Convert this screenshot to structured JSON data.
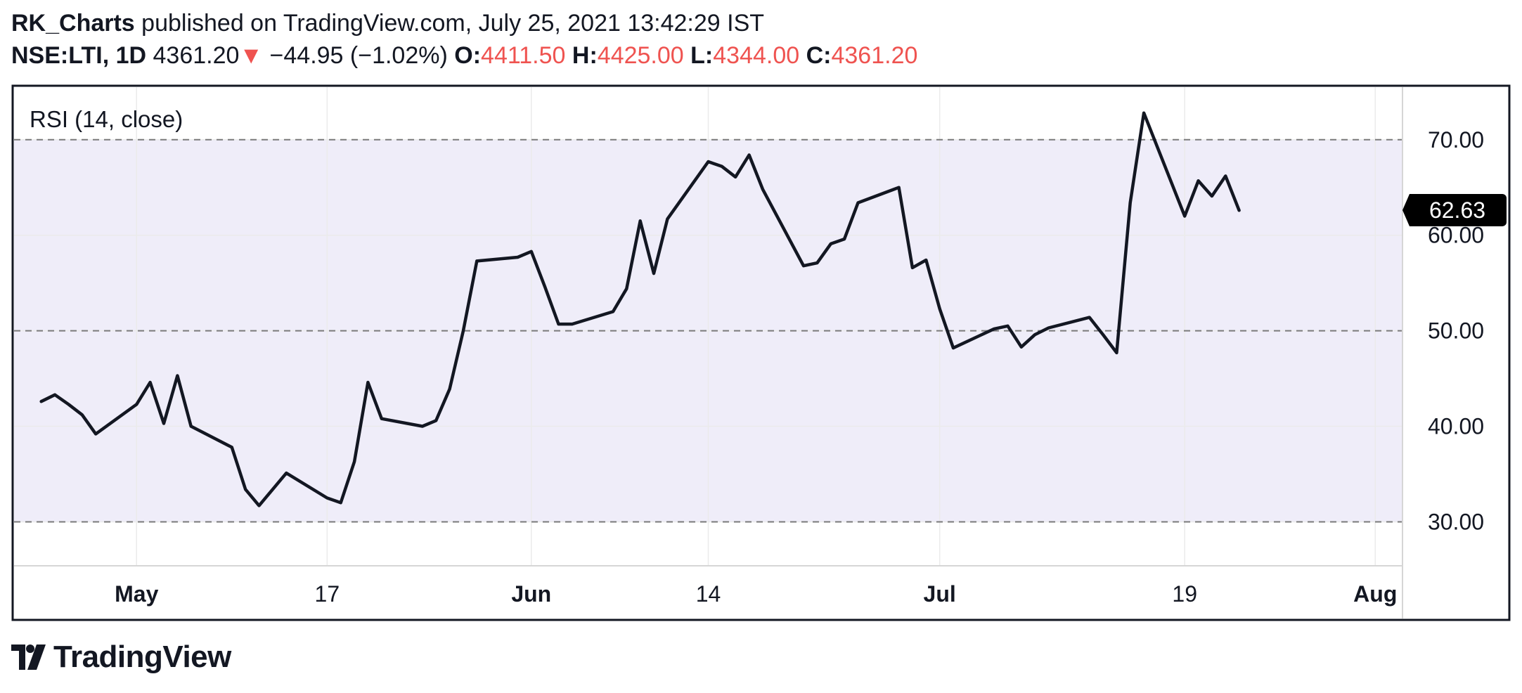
{
  "header": {
    "author": "RK_Charts",
    "published_text": "published on TradingView.com, July 25, 2021 13:42:29 IST",
    "symbol": "NSE:LTI, 1D",
    "price": "4361.20",
    "change": "−44.95 (−1.02%)",
    "open_label": "O:",
    "open_value": "4411.50",
    "high_label": "H:",
    "high_value": "4425.00",
    "low_label": "L:",
    "low_value": "4344.00",
    "close_label": "C:",
    "close_value": "4361.20"
  },
  "brand": {
    "name": "TradingView"
  },
  "colors": {
    "line": "#131722",
    "band": "#efedf9",
    "down": "#ef5350",
    "grid": "#ebebeb",
    "dashed": "#7a7a7a"
  },
  "chart_data": {
    "type": "line",
    "title": "RSI (14, close)",
    "y_ticks": [
      "30.00",
      "40.00",
      "50.00",
      "60.00",
      "70.00"
    ],
    "ylim": [
      25.4,
      75.5
    ],
    "band": [
      30,
      70
    ],
    "dashed_levels": [
      30,
      50,
      70
    ],
    "last_value_label": "62.63",
    "last_value": 62.63,
    "x_ticks": [
      {
        "label": "May",
        "date": "2021-05-03"
      },
      {
        "label": "17",
        "date": "2021-05-17"
      },
      {
        "label": "Jun",
        "date": "2021-06-01"
      },
      {
        "label": "14",
        "date": "2021-06-14"
      },
      {
        "label": "Jul",
        "date": "2021-07-01"
      },
      {
        "label": "19",
        "date": "2021-07-19"
      },
      {
        "label": "Aug",
        "date": "2021-08-02"
      }
    ],
    "series": [
      {
        "values": [
          [
            "2021-04-26",
            42.6
          ],
          [
            "2021-04-27",
            43.3
          ],
          [
            "2021-04-28",
            42.3
          ],
          [
            "2021-04-29",
            41.2
          ],
          [
            "2021-04-30",
            39.2
          ],
          [
            "2021-05-03",
            42.3
          ],
          [
            "2021-05-04",
            44.6
          ],
          [
            "2021-05-05",
            40.3
          ],
          [
            "2021-05-06",
            45.3
          ],
          [
            "2021-05-07",
            40.0
          ],
          [
            "2021-05-10",
            37.8
          ],
          [
            "2021-05-11",
            33.4
          ],
          [
            "2021-05-12",
            31.7
          ],
          [
            "2021-05-14",
            35.1
          ],
          [
            "2021-05-17",
            32.5
          ],
          [
            "2021-05-18",
            32.0
          ],
          [
            "2021-05-19",
            36.3
          ],
          [
            "2021-05-20",
            44.6
          ],
          [
            "2021-05-21",
            40.8
          ],
          [
            "2021-05-24",
            40.0
          ],
          [
            "2021-05-25",
            40.6
          ],
          [
            "2021-05-26",
            43.9
          ],
          [
            "2021-05-27",
            50.0
          ],
          [
            "2021-05-28",
            57.3
          ],
          [
            "2021-05-31",
            57.7
          ],
          [
            "2021-06-01",
            58.3
          ],
          [
            "2021-06-02",
            54.6
          ],
          [
            "2021-06-03",
            50.7
          ],
          [
            "2021-06-04",
            50.7
          ],
          [
            "2021-06-07",
            52.0
          ],
          [
            "2021-06-08",
            54.4
          ],
          [
            "2021-06-09",
            61.5
          ],
          [
            "2021-06-10",
            56.0
          ],
          [
            "2021-06-11",
            61.7
          ],
          [
            "2021-06-14",
            67.7
          ],
          [
            "2021-06-15",
            67.2
          ],
          [
            "2021-06-16",
            66.1
          ],
          [
            "2021-06-17",
            68.4
          ],
          [
            "2021-06-18",
            64.8
          ],
          [
            "2021-06-21",
            56.8
          ],
          [
            "2021-06-22",
            57.1
          ],
          [
            "2021-06-23",
            59.1
          ],
          [
            "2021-06-24",
            59.6
          ],
          [
            "2021-06-25",
            63.4
          ],
          [
            "2021-06-28",
            65.0
          ],
          [
            "2021-06-29",
            56.6
          ],
          [
            "2021-06-30",
            57.4
          ],
          [
            "2021-07-01",
            52.3
          ],
          [
            "2021-07-02",
            48.2
          ],
          [
            "2021-07-05",
            50.2
          ],
          [
            "2021-07-06",
            50.5
          ],
          [
            "2021-07-07",
            48.3
          ],
          [
            "2021-07-08",
            49.6
          ],
          [
            "2021-07-09",
            50.3
          ],
          [
            "2021-07-12",
            51.4
          ],
          [
            "2021-07-13",
            49.6
          ],
          [
            "2021-07-14",
            47.7
          ],
          [
            "2021-07-15",
            63.4
          ],
          [
            "2021-07-16",
            72.8
          ],
          [
            "2021-07-19",
            62.0
          ],
          [
            "2021-07-20",
            65.7
          ],
          [
            "2021-07-21",
            64.1
          ],
          [
            "2021-07-22",
            66.2
          ],
          [
            "2021-07-23",
            62.6
          ]
        ]
      }
    ]
  }
}
